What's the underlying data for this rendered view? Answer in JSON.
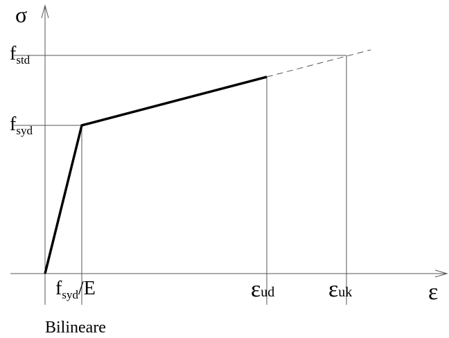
{
  "axes": {
    "y_label": "σ",
    "x_label": "ε"
  },
  "y_labels": [
    {
      "main": "f",
      "sub": "std"
    },
    {
      "main": "f",
      "sub": "syd"
    }
  ],
  "x_labels": [
    {
      "main": "f",
      "sub": "syd",
      "suffix": "/E"
    },
    {
      "main": "ε",
      "sub": "ud"
    },
    {
      "main": "ε",
      "sub": "uk"
    }
  ],
  "caption": "Bilineare"
}
